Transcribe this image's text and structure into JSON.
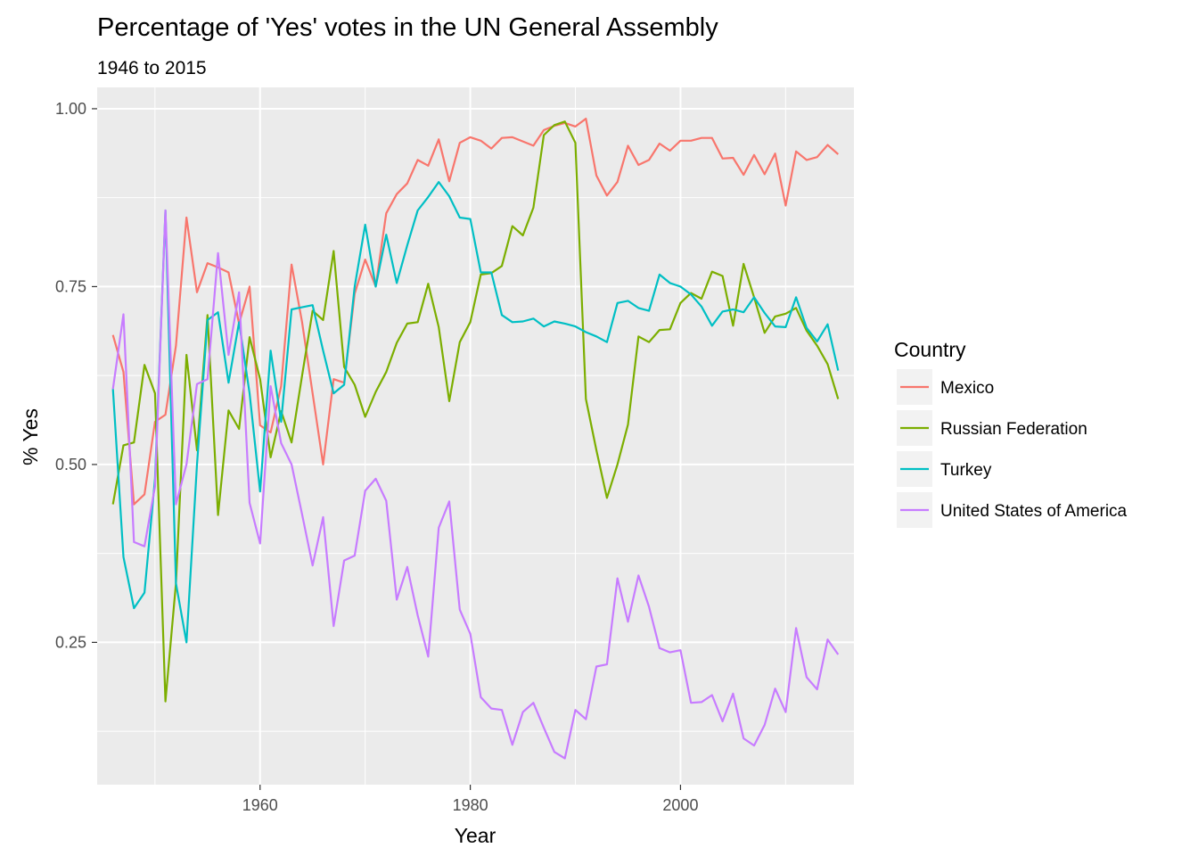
{
  "chart_data": {
    "type": "line",
    "title": "Percentage of 'Yes' votes in the UN General Assembly",
    "subtitle": "1946 to 2015",
    "xlabel": "Year",
    "ylabel": "% Yes",
    "xlim": [
      1944.5,
      2016.5
    ],
    "ylim": [
      0.05,
      1.03
    ],
    "x_ticks": [
      1960,
      1980,
      2000
    ],
    "y_ticks": [
      0.25,
      0.5,
      0.75,
      1.0
    ],
    "y_tick_labels": [
      "0.25",
      "0.50",
      "0.75",
      "1.00"
    ],
    "grid": true,
    "legend": {
      "title": "Country",
      "position": "right"
    },
    "x": [
      1946,
      1947,
      1948,
      1949,
      1950,
      1951,
      1952,
      1953,
      1954,
      1955,
      1956,
      1957,
      1958,
      1959,
      1960,
      1961,
      1962,
      1963,
      1964,
      1965,
      1966,
      1967,
      1968,
      1969,
      1970,
      1971,
      1972,
      1973,
      1974,
      1975,
      1976,
      1977,
      1978,
      1979,
      1980,
      1981,
      1982,
      1983,
      1984,
      1985,
      1986,
      1987,
      1988,
      1989,
      1990,
      1991,
      1992,
      1993,
      1994,
      1995,
      1996,
      1997,
      1998,
      1999,
      2000,
      2001,
      2002,
      2003,
      2004,
      2005,
      2006,
      2007,
      2008,
      2009,
      2010,
      2011,
      2012,
      2013,
      2014,
      2015
    ],
    "series": [
      {
        "name": "Mexico",
        "color": "#F8766D",
        "values": [
          0.682,
          0.63,
          0.444,
          0.458,
          0.56,
          0.57,
          0.667,
          0.847,
          0.742,
          0.783,
          0.777,
          0.77,
          0.698,
          0.75,
          0.555,
          0.545,
          0.61,
          0.781,
          0.7,
          0.6,
          0.5,
          0.62,
          0.615,
          0.74,
          0.788,
          0.75,
          0.853,
          0.88,
          0.895,
          0.928,
          0.92,
          0.957,
          0.898,
          0.952,
          0.96,
          0.955,
          0.944,
          0.959,
          0.96,
          0.954,
          0.948,
          0.97,
          0.976,
          0.98,
          0.975,
          0.986,
          0.906,
          0.878,
          0.897,
          0.948,
          0.921,
          0.928,
          0.951,
          0.941,
          0.955,
          0.955,
          0.959,
          0.959,
          0.93,
          0.931,
          0.907,
          0.935,
          0.908,
          0.937,
          0.864,
          0.94,
          0.928,
          0.932,
          0.949,
          0.936
        ]
      },
      {
        "name": "Russian Federation",
        "color": "#7CAE00",
        "values": [
          0.444,
          0.527,
          0.531,
          0.64,
          0.6,
          0.167,
          0.333,
          0.654,
          0.52,
          0.71,
          0.429,
          0.576,
          0.55,
          0.679,
          0.62,
          0.51,
          0.575,
          0.531,
          0.625,
          0.716,
          0.703,
          0.8,
          0.637,
          0.612,
          0.567,
          0.602,
          0.63,
          0.671,
          0.698,
          0.7,
          0.754,
          0.693,
          0.589,
          0.672,
          0.7,
          0.767,
          0.769,
          0.779,
          0.835,
          0.822,
          0.861,
          0.963,
          0.977,
          0.982,
          0.952,
          0.592,
          0.52,
          0.453,
          0.5,
          0.556,
          0.68,
          0.672,
          0.689,
          0.69,
          0.727,
          0.741,
          0.733,
          0.771,
          0.765,
          0.695,
          0.782,
          0.735,
          0.685,
          0.708,
          0.712,
          0.72,
          0.688,
          0.667,
          0.641,
          0.592
        ]
      },
      {
        "name": "Turkey",
        "color": "#00BFC4",
        "values": [
          0.606,
          0.37,
          0.298,
          0.32,
          0.48,
          0.857,
          0.333,
          0.25,
          0.5,
          0.703,
          0.714,
          0.615,
          0.7,
          0.6,
          0.462,
          0.66,
          0.56,
          0.718,
          0.721,
          0.724,
          0.66,
          0.6,
          0.612,
          0.75,
          0.837,
          0.75,
          0.823,
          0.755,
          0.808,
          0.857,
          0.876,
          0.897,
          0.877,
          0.847,
          0.845,
          0.77,
          0.77,
          0.71,
          0.7,
          0.701,
          0.705,
          0.694,
          0.701,
          0.698,
          0.694,
          0.686,
          0.68,
          0.672,
          0.727,
          0.73,
          0.72,
          0.716,
          0.767,
          0.755,
          0.75,
          0.739,
          0.722,
          0.695,
          0.715,
          0.718,
          0.714,
          0.735,
          0.713,
          0.694,
          0.693,
          0.735,
          0.692,
          0.673,
          0.697,
          0.632
        ]
      },
      {
        "name": "United States of America",
        "color": "#C77CFF",
        "values": [
          0.606,
          0.711,
          0.391,
          0.385,
          0.469,
          0.857,
          0.444,
          0.5,
          0.613,
          0.62,
          0.797,
          0.654,
          0.742,
          0.446,
          0.389,
          0.61,
          0.53,
          0.5,
          0.43,
          0.358,
          0.426,
          0.273,
          0.365,
          0.372,
          0.463,
          0.48,
          0.449,
          0.31,
          0.356,
          0.288,
          0.23,
          0.411,
          0.448,
          0.296,
          0.262,
          0.173,
          0.157,
          0.155,
          0.106,
          0.152,
          0.165,
          0.13,
          0.096,
          0.087,
          0.155,
          0.142,
          0.216,
          0.219,
          0.34,
          0.279,
          0.344,
          0.3,
          0.242,
          0.236,
          0.239,
          0.165,
          0.166,
          0.176,
          0.139,
          0.178,
          0.115,
          0.105,
          0.134,
          0.185,
          0.152,
          0.27,
          0.201,
          0.184,
          0.254,
          0.233
        ]
      }
    ]
  }
}
